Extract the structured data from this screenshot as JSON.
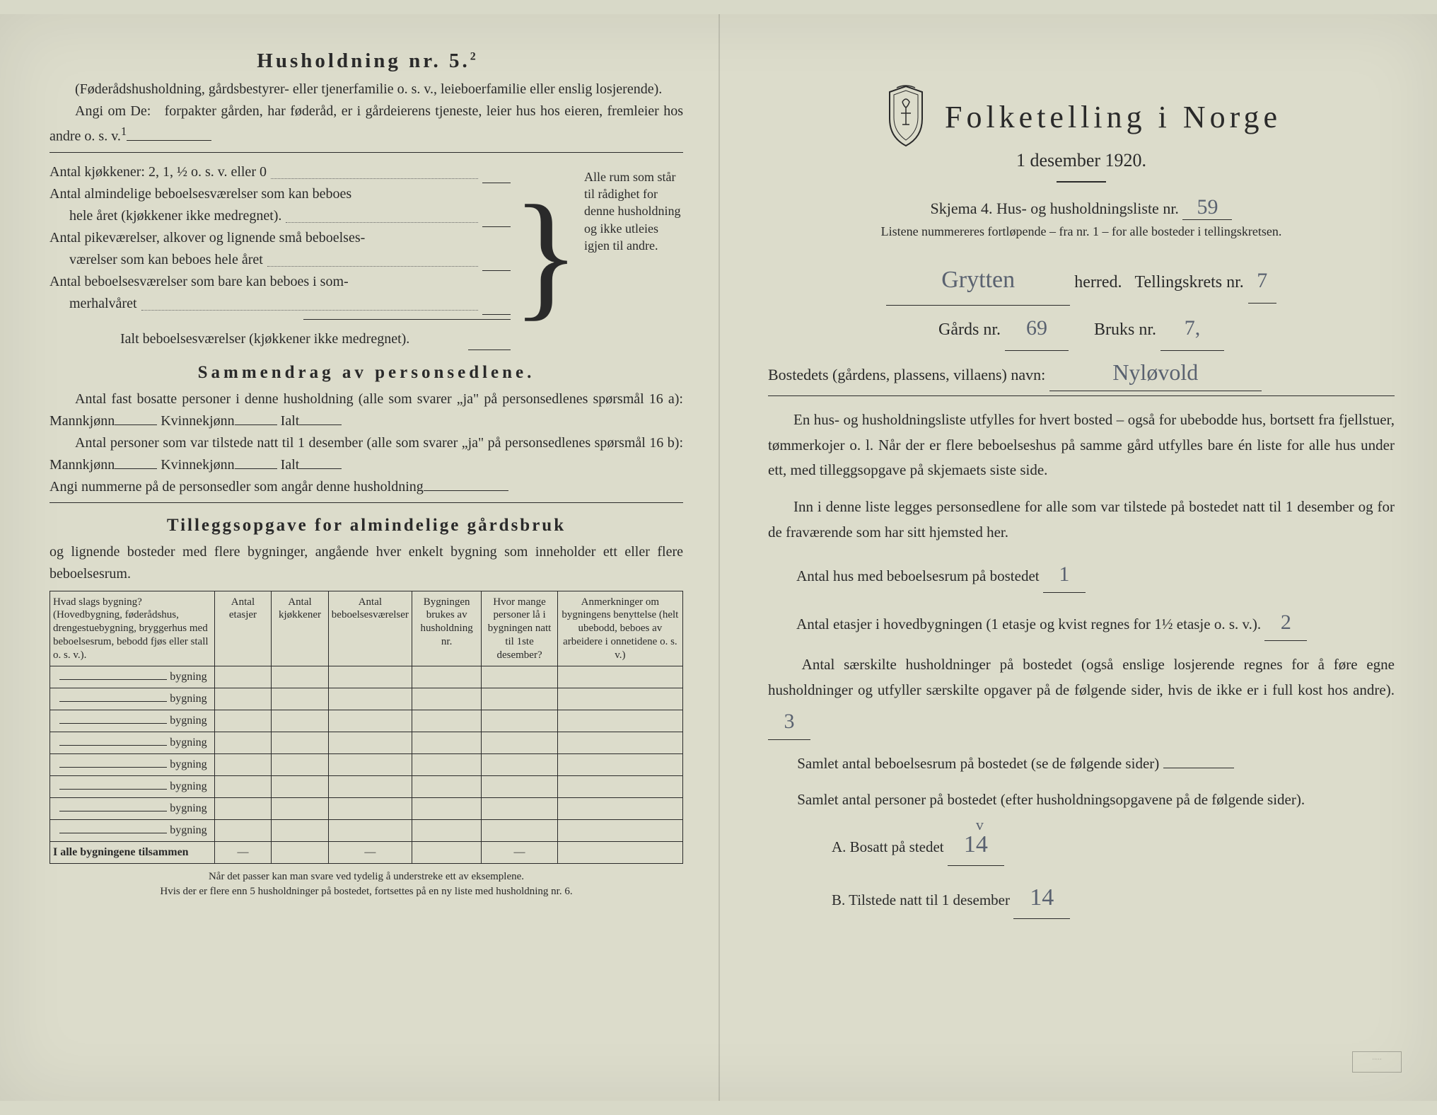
{
  "colors": {
    "paper": "#dcdccb",
    "ink": "#2a2a2a",
    "handwriting": "#5a6270"
  },
  "left": {
    "heading": "Husholdning nr. 5.",
    "heading_sup": "2",
    "p1": "(Føderådshusholdning, gårdsbestyrer- eller tjenerfamilie o. s. v., leieboerfamilie eller enslig losjerende).",
    "p2a": "Angi om De:",
    "p2b": "forpakter gården, har føderåd, er i gårdeierens tjeneste, leier hus hos eieren, fremleier hos andre o. s. v.",
    "p2sup": "1",
    "kitchens": "Antal kjøkkener: 2, 1, ½ o. s. v. eller 0",
    "rooms1a": "Antal almindelige beboelsesværelser som kan beboes",
    "rooms1b": "hele året (kjøkkener ikke medregnet).",
    "rooms2a": "Antal pikeværelser, alkover og lignende små beboelses-",
    "rooms2b": "værelser som kan beboes hele året",
    "rooms3a": "Antal beboelsesværelser som bare kan beboes i som-",
    "rooms3b": "merhalvåret",
    "rooms_total": "Ialt beboelsesværelser (kjøkkener ikke medregnet).",
    "bracket_text": "Alle rum som står til rådighet for denne husholdning og ikke utleies igjen til andre.",
    "summary_title": "Sammendrag av personsedlene.",
    "s1a": "Antal fast bosatte personer i denne husholdning (alle som svarer „ja\" på personsedlenes spørsmål 16 a): Mannkjønn",
    "s1b": "Kvinnekjønn",
    "s1c": "Ialt",
    "s2a": "Antal personer som var tilstede natt til 1 desember (alle som svarer „ja\" på personsedlenes spørsmål 16 b): Mannkjønn",
    "s3": "Angi nummerne på de personsedler som angår denne husholdning",
    "tillegg_title": "Tilleggsopgave for almindelige gårdsbruk",
    "tillegg_sub": "og lignende bosteder med flere bygninger, angående hver enkelt bygning som inneholder ett eller flere beboelsesrum.",
    "table": {
      "headers": [
        "Hvad slags bygning?\n(Hovedbygning, føderådshus, drengestuebygning, bryggerhus med beboelsesrum, bebodd fjøs eller stall o. s. v.).",
        "Antal etasjer",
        "Antal kjøkkener",
        "Antal beboelsesværelser",
        "Bygningen brukes av husholdning nr.",
        "Hvor mange personer lå i bygningen natt til 1ste desember?",
        "Anmerkninger om bygningens benyttelse (helt ubebodd, beboes av arbeidere i onnetidene o. s. v.)"
      ],
      "row_label": "bygning",
      "rows": 8,
      "total_label": "I alle bygningene tilsammen",
      "dash": "—"
    },
    "foot1": "Når det passer kan man svare ved tydelig å understreke ett av eksemplene.",
    "foot2": "Hvis der er flere enn 5 husholdninger på bostedet, fortsettes på en ny liste med husholdning nr. 6."
  },
  "right": {
    "title": "Folketelling i Norge",
    "date": "1 desember 1920.",
    "skjema": "Skjema 4.  Hus- og husholdningsliste nr.",
    "skjema_val": "59",
    "note": "Listene nummereres fortløpende – fra nr. 1 – for alle bosteder i tellingskretsen.",
    "herred_val": "Grytten",
    "herred_lbl": "herred.",
    "krets_lbl": "Tellingskrets nr.",
    "krets_val": "7",
    "gards_lbl": "Gårds nr.",
    "gards_val": "69",
    "bruks_lbl": "Bruks nr.",
    "bruks_val": "7,",
    "navn_lbl": "Bostedets (gårdens, plassens, villaens) navn:",
    "navn_val": "Nyløvold",
    "para1": "En hus- og husholdningsliste utfylles for hvert bosted – også for ubebodde hus, bortsett fra fjellstuer, tømmerkojer o. l.  Når der er flere beboelseshus på samme gård utfylles bare én liste for alle hus under ett, med tilleggsopgave på skjemaets siste side.",
    "para2": "Inn i denne liste legges personsedlene for alle som var tilstede på bostedet natt til 1 desember og for de fraværende som har sitt hjemsted her.",
    "q1": "Antal hus med beboelsesrum på bostedet",
    "q1_val": "1",
    "q2a": "Antal etasjer i hovedbygningen (1 etasje og kvist regnes for 1½ etasje o. s. v.).",
    "q2_val": "2",
    "q3": "Antal særskilte husholdninger på bostedet (også enslige losjerende regnes for å føre egne husholdninger og utfyller særskilte opgaver på de følgende sider, hvis de ikke er i full kost hos andre).",
    "q3_val": "3",
    "q4": "Samlet antal beboelsesrum på bostedet (se de følgende sider)",
    "q5": "Samlet antal personer på bostedet (efter husholdningsopgavene på de følgende sider).",
    "qA": "A.  Bosatt på stedet",
    "qA_val": "14",
    "qB": "B.  Tilstede natt til 1 desember",
    "qB_val": "14"
  }
}
